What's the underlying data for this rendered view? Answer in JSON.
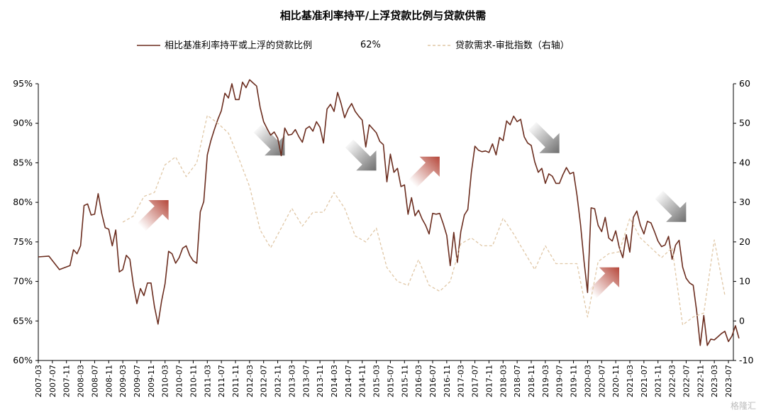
{
  "chart_data": {
    "type": "line",
    "title": "相比基准利率持平/上浮贷款比例与贷款供需",
    "legend_position": "top",
    "legend_note": "62%",
    "x_ticks": [
      "2007-03",
      "2007-07",
      "2007-11",
      "2008-03",
      "2008-07",
      "2008-11",
      "2009-03",
      "2009-07",
      "2009-11",
      "2010-03",
      "2010-07",
      "2010-11",
      "2011-03",
      "2011-07",
      "2011-11",
      "2012-03",
      "2012-07",
      "2012-11",
      "2013-03",
      "2013-07",
      "2013-11",
      "2014-03",
      "2014-07",
      "2014-11",
      "2015-03",
      "2015-07",
      "2015-11",
      "2016-03",
      "2016-07",
      "2016-11",
      "2017-03",
      "2017-07",
      "2017-11",
      "2018-03",
      "2018-07",
      "2018-11",
      "2019-03",
      "2019-07",
      "2019-11",
      "2020-03",
      "2020-07",
      "2020-11",
      "2021-03",
      "2021-07",
      "2021-11",
      "2022-03",
      "2022-07",
      "2022-11",
      "2023-03",
      "2023-07"
    ],
    "y_left": {
      "min": 60,
      "max": 95,
      "ticks": [
        "60%",
        "65%",
        "70%",
        "75%",
        "80%",
        "85%",
        "90%",
        "95%"
      ],
      "values": [
        60,
        65,
        70,
        75,
        80,
        85,
        90,
        95
      ]
    },
    "y_right": {
      "min": -10,
      "max": 60,
      "ticks": [
        "-10",
        "0",
        "10",
        "20",
        "30",
        "40",
        "50",
        "60"
      ],
      "values": [
        -10,
        0,
        10,
        20,
        30,
        40,
        50,
        60
      ]
    },
    "grid": false,
    "series": [
      {
        "name": "相比基准利率持平或上浮的贷款比例",
        "axis": "left",
        "color": "#6b2d1f",
        "style": "solid",
        "points": [
          [
            "2007-03",
            73.1
          ],
          [
            "2007-06",
            73.2
          ],
          [
            "2007-09",
            71.5
          ],
          [
            "2007-12",
            72.0
          ],
          [
            "2008-01",
            74.0
          ],
          [
            "2008-02",
            73.5
          ],
          [
            "2008-03",
            74.5
          ],
          [
            "2008-04",
            79.6
          ],
          [
            "2008-05",
            79.8
          ],
          [
            "2008-06",
            78.4
          ],
          [
            "2008-07",
            78.5
          ],
          [
            "2008-08",
            81.1
          ],
          [
            "2008-09",
            78.6
          ],
          [
            "2008-10",
            76.8
          ],
          [
            "2008-11",
            76.6
          ],
          [
            "2008-12",
            74.5
          ],
          [
            "2009-01",
            76.5
          ],
          [
            "2009-02",
            71.2
          ],
          [
            "2009-03",
            71.5
          ],
          [
            "2009-04",
            73.3
          ],
          [
            "2009-05",
            72.8
          ],
          [
            "2009-06",
            69.6
          ],
          [
            "2009-07",
            67.2
          ],
          [
            "2009-08",
            69.1
          ],
          [
            "2009-09",
            68.2
          ],
          [
            "2009-10",
            69.8
          ],
          [
            "2009-11",
            69.8
          ],
          [
            "2009-12",
            66.8
          ],
          [
            "2010-01",
            64.6
          ],
          [
            "2010-02",
            67.5
          ],
          [
            "2010-03",
            69.7
          ],
          [
            "2010-04",
            73.8
          ],
          [
            "2010-05",
            73.5
          ],
          [
            "2010-06",
            72.3
          ],
          [
            "2010-07",
            73.0
          ],
          [
            "2010-08",
            74.2
          ],
          [
            "2010-09",
            74.5
          ],
          [
            "2010-10",
            73.3
          ],
          [
            "2010-11",
            72.6
          ],
          [
            "2010-12",
            72.3
          ],
          [
            "2011-01",
            78.8
          ],
          [
            "2011-02",
            80.1
          ],
          [
            "2011-03",
            86.0
          ],
          [
            "2011-04",
            87.8
          ],
          [
            "2011-05",
            89.2
          ],
          [
            "2011-06",
            90.5
          ],
          [
            "2011-07",
            91.6
          ],
          [
            "2011-08",
            93.8
          ],
          [
            "2011-09",
            93.2
          ],
          [
            "2011-10",
            95.0
          ],
          [
            "2011-11",
            93.0
          ],
          [
            "2011-12",
            93.0
          ],
          [
            "2012-01",
            95.2
          ],
          [
            "2012-02",
            94.5
          ],
          [
            "2012-03",
            95.5
          ],
          [
            "2012-04",
            95.1
          ],
          [
            "2012-05",
            94.7
          ],
          [
            "2012-06",
            92.0
          ],
          [
            "2012-07",
            90.2
          ],
          [
            "2012-08",
            89.3
          ],
          [
            "2012-09",
            88.5
          ],
          [
            "2012-10",
            88.9
          ],
          [
            "2012-11",
            88.1
          ],
          [
            "2012-12",
            85.9
          ],
          [
            "2013-01",
            89.4
          ],
          [
            "2013-02",
            88.5
          ],
          [
            "2013-03",
            88.6
          ],
          [
            "2013-04",
            89.2
          ],
          [
            "2013-05",
            88.3
          ],
          [
            "2013-06",
            87.6
          ],
          [
            "2013-07",
            89.3
          ],
          [
            "2013-08",
            89.6
          ],
          [
            "2013-09",
            89.0
          ],
          [
            "2013-10",
            90.2
          ],
          [
            "2013-11",
            89.5
          ],
          [
            "2013-12",
            87.5
          ],
          [
            "2014-01",
            91.8
          ],
          [
            "2014-02",
            92.4
          ],
          [
            "2014-03",
            91.5
          ],
          [
            "2014-04",
            93.9
          ],
          [
            "2014-05",
            92.5
          ],
          [
            "2014-06",
            90.7
          ],
          [
            "2014-07",
            91.8
          ],
          [
            "2014-08",
            92.5
          ],
          [
            "2014-09",
            91.5
          ],
          [
            "2014-10",
            90.9
          ],
          [
            "2014-11",
            90.4
          ],
          [
            "2014-12",
            87.0
          ],
          [
            "2015-01",
            89.8
          ],
          [
            "2015-02",
            89.3
          ],
          [
            "2015-03",
            88.8
          ],
          [
            "2015-04",
            87.7
          ],
          [
            "2015-05",
            87.3
          ],
          [
            "2015-06",
            82.6
          ],
          [
            "2015-07",
            86.1
          ],
          [
            "2015-08",
            83.8
          ],
          [
            "2015-09",
            84.3
          ],
          [
            "2015-10",
            82.0
          ],
          [
            "2015-11",
            82.2
          ],
          [
            "2015-12",
            78.5
          ],
          [
            "2016-01",
            80.6
          ],
          [
            "2016-02",
            78.3
          ],
          [
            "2016-03",
            79.0
          ],
          [
            "2016-04",
            77.9
          ],
          [
            "2016-05",
            77.1
          ],
          [
            "2016-06",
            76.0
          ],
          [
            "2016-07",
            78.6
          ],
          [
            "2016-08",
            78.5
          ],
          [
            "2016-09",
            78.6
          ],
          [
            "2016-10",
            77.3
          ],
          [
            "2016-11",
            75.8
          ],
          [
            "2016-12",
            72.0
          ],
          [
            "2017-01",
            76.2
          ],
          [
            "2017-02",
            72.4
          ],
          [
            "2017-03",
            76.3
          ],
          [
            "2017-04",
            78.4
          ],
          [
            "2017-05",
            79.1
          ],
          [
            "2017-06",
            83.8
          ],
          [
            "2017-07",
            87.1
          ],
          [
            "2017-08",
            86.6
          ],
          [
            "2017-09",
            86.4
          ],
          [
            "2017-10",
            86.5
          ],
          [
            "2017-11",
            86.3
          ],
          [
            "2017-12",
            87.4
          ],
          [
            "2018-01",
            86.0
          ],
          [
            "2018-02",
            88.2
          ],
          [
            "2018-03",
            87.8
          ],
          [
            "2018-04",
            90.3
          ],
          [
            "2018-05",
            89.8
          ],
          [
            "2018-06",
            90.9
          ],
          [
            "2018-07",
            90.2
          ],
          [
            "2018-08",
            90.5
          ],
          [
            "2018-09",
            88.3
          ],
          [
            "2018-10",
            87.5
          ],
          [
            "2018-11",
            87.2
          ],
          [
            "2018-12",
            85.1
          ],
          [
            "2019-01",
            83.8
          ],
          [
            "2019-02",
            84.3
          ],
          [
            "2019-03",
            82.4
          ],
          [
            "2019-04",
            83.6
          ],
          [
            "2019-05",
            83.3
          ],
          [
            "2019-06",
            82.4
          ],
          [
            "2019-07",
            82.4
          ],
          [
            "2019-08",
            83.5
          ],
          [
            "2019-09",
            84.4
          ],
          [
            "2019-10",
            83.6
          ],
          [
            "2019-11",
            83.8
          ],
          [
            "2019-12",
            80.9
          ],
          [
            "2020-01",
            77.2
          ],
          [
            "2020-02",
            72.5
          ],
          [
            "2020-03",
            68.6
          ],
          [
            "2020-04",
            79.3
          ],
          [
            "2020-05",
            79.2
          ],
          [
            "2020-06",
            77.1
          ],
          [
            "2020-07",
            76.3
          ],
          [
            "2020-08",
            78.1
          ],
          [
            "2020-09",
            75.5
          ],
          [
            "2020-10",
            75.1
          ],
          [
            "2020-11",
            76.4
          ],
          [
            "2020-12",
            74.3
          ],
          [
            "2021-01",
            73.0
          ],
          [
            "2021-02",
            75.9
          ],
          [
            "2021-03",
            73.7
          ],
          [
            "2021-04",
            78.1
          ],
          [
            "2021-05",
            78.9
          ],
          [
            "2021-06",
            77.1
          ],
          [
            "2021-07",
            76.0
          ],
          [
            "2021-08",
            77.6
          ],
          [
            "2021-09",
            77.4
          ],
          [
            "2021-10",
            76.3
          ],
          [
            "2021-11",
            75.1
          ],
          [
            "2021-12",
            74.4
          ],
          [
            "2022-01",
            74.6
          ],
          [
            "2022-02",
            75.7
          ],
          [
            "2022-03",
            72.8
          ],
          [
            "2022-04",
            74.6
          ],
          [
            "2022-05",
            75.2
          ],
          [
            "2022-06",
            71.8
          ],
          [
            "2022-07",
            70.4
          ],
          [
            "2022-08",
            69.8
          ],
          [
            "2022-09",
            69.5
          ],
          [
            "2022-10",
            66.2
          ],
          [
            "2022-11",
            61.9
          ],
          [
            "2022-12",
            65.7
          ],
          [
            "2023-01",
            61.9
          ],
          [
            "2023-02",
            62.7
          ],
          [
            "2023-03",
            62.6
          ],
          [
            "2023-04",
            63.0
          ],
          [
            "2023-05",
            63.4
          ],
          [
            "2023-06",
            63.7
          ],
          [
            "2023-07",
            62.4
          ],
          [
            "2023-08",
            63.1
          ],
          [
            "2023-09",
            64.4
          ],
          [
            "2023-10",
            62.8
          ]
        ]
      },
      {
        "name": "贷款需求-审批指数（右轴）",
        "axis": "right",
        "color": "#e0c7a6",
        "style": "dashed",
        "points": [
          [
            "2009-03",
            25.0
          ],
          [
            "2009-06",
            26.5
          ],
          [
            "2009-09",
            31.5
          ],
          [
            "2009-12",
            32.5
          ],
          [
            "2010-03",
            39.5
          ],
          [
            "2010-06",
            41.5
          ],
          [
            "2010-09",
            36.5
          ],
          [
            "2010-12",
            40.0
          ],
          [
            "2011-03",
            52.0
          ],
          [
            "2011-06",
            50.0
          ],
          [
            "2011-09",
            47.5
          ],
          [
            "2011-12",
            41.0
          ],
          [
            "2012-03",
            34.0
          ],
          [
            "2012-06",
            23.0
          ],
          [
            "2012-09",
            18.5
          ],
          [
            "2012-12",
            23.5
          ],
          [
            "2013-03",
            28.5
          ],
          [
            "2013-06",
            24.0
          ],
          [
            "2013-09",
            27.5
          ],
          [
            "2013-12",
            27.5
          ],
          [
            "2014-03",
            32.5
          ],
          [
            "2014-06",
            28.5
          ],
          [
            "2014-09",
            21.5
          ],
          [
            "2014-12",
            20.0
          ],
          [
            "2015-03",
            23.5
          ],
          [
            "2015-06",
            13.5
          ],
          [
            "2015-09",
            10.0
          ],
          [
            "2015-12",
            9.0
          ],
          [
            "2016-03",
            15.5
          ],
          [
            "2016-06",
            9.0
          ],
          [
            "2016-09",
            7.5
          ],
          [
            "2016-12",
            10.0
          ],
          [
            "2017-03",
            19.5
          ],
          [
            "2017-06",
            21.0
          ],
          [
            "2017-09",
            19.0
          ],
          [
            "2017-12",
            19.0
          ],
          [
            "2018-03",
            26.0
          ],
          [
            "2018-06",
            22.0
          ],
          [
            "2018-09",
            17.5
          ],
          [
            "2018-12",
            13.0
          ],
          [
            "2019-03",
            19.0
          ],
          [
            "2019-06",
            14.5
          ],
          [
            "2019-09",
            14.5
          ],
          [
            "2019-12",
            14.5
          ],
          [
            "2020-03",
            1.0
          ],
          [
            "2020-06",
            15.0
          ],
          [
            "2020-09",
            17.0
          ],
          [
            "2020-12",
            17.5
          ],
          [
            "2021-03",
            26.0
          ],
          [
            "2021-06",
            21.0
          ],
          [
            "2021-09",
            18.5
          ],
          [
            "2021-12",
            16.0
          ],
          [
            "2022-03",
            18.5
          ],
          [
            "2022-06",
            -1.0
          ],
          [
            "2022-09",
            1.0
          ],
          [
            "2022-12",
            2.0
          ],
          [
            "2023-03",
            20.5
          ],
          [
            "2023-06",
            6.5
          ]
        ]
      }
    ],
    "annotations": [
      {
        "type": "arrow",
        "direction": "up",
        "color": "#c0504d",
        "x": "2009-12",
        "y_left": 78.5
      },
      {
        "type": "arrow",
        "direction": "down",
        "color": "#808080",
        "x": "2012-09",
        "y_left": 87.7
      },
      {
        "type": "arrow",
        "direction": "down",
        "color": "#808080",
        "x": "2014-11",
        "y_left": 85.8
      },
      {
        "type": "arrow",
        "direction": "up",
        "color": "#c0504d",
        "x": "2016-05",
        "y_left": 84.0
      },
      {
        "type": "arrow",
        "direction": "down",
        "color": "#808080",
        "x": "2019-03",
        "y_left": 88.0
      },
      {
        "type": "arrow",
        "direction": "up",
        "color": "#c0504d",
        "x": "2020-08",
        "y_left": 70.0
      },
      {
        "type": "arrow",
        "direction": "down",
        "color": "#808080",
        "x": "2022-03",
        "y_left": 79.3
      }
    ]
  },
  "watermark": "格隆汇"
}
